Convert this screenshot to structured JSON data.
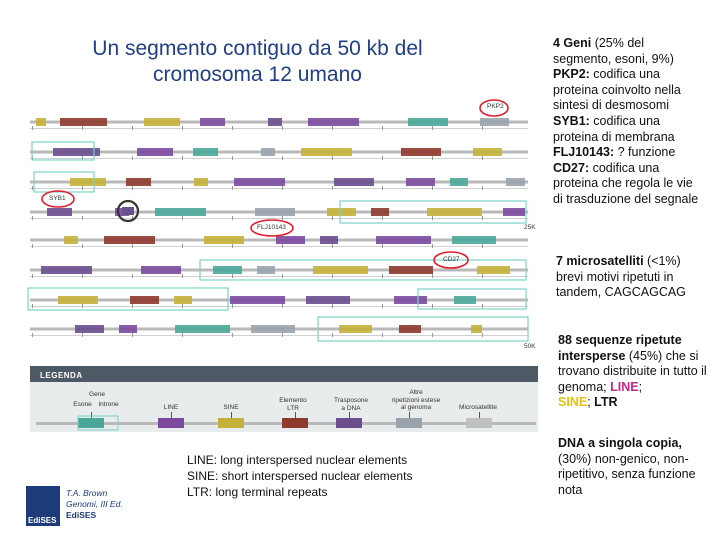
{
  "title": {
    "line1": "Un segmento contiguo da 50 kb del",
    "line2": "cromosoma 12 umano"
  },
  "genes": {
    "pkp2": "PKP2",
    "syb1": "SYB1",
    "flj": "FLJ10143",
    "cd27": "CD27"
  },
  "scale": {
    "mid": "25K",
    "end": "50K"
  },
  "legend": {
    "title": "LEGENDA",
    "gene": "Gene",
    "exon": "Esone",
    "intron": "Introne",
    "line": "LINE",
    "sine": "SINE",
    "ltr1": "Elemento",
    "ltr2": "LTR",
    "dna1": "Trasposone",
    "dna2": "a DNA",
    "other1": "Altre",
    "other2": "ripetizioni estese",
    "other3": "al genoma",
    "micro": "Microsatellite"
  },
  "colors": {
    "gene": "#4aa89a",
    "gene_box": "#7cd1c8",
    "line": "#7b4a9e",
    "sine": "#c5b13a",
    "ltr": "#8e3a2d",
    "dna": "#6a4e8e",
    "microsat": "#c0c0c0",
    "other": "#9aa3ad",
    "backbone": "#b9b9b9",
    "callout": "#e11d2a",
    "legend_header": "#4d5a66",
    "legend_bg": "#e9ecec"
  },
  "notes": {
    "genes": {
      "heading": "4 Geni",
      "share": " (25% del segmento, esoni, 9%)",
      "pkp2_name": "PKP2:",
      "pkp2_text": " codifica una proteina coinvolto nella sintesi di desmosomi",
      "syb1_name": "SYB1:",
      "syb1_text": " codifica una proteina di membrana",
      "flj_name": "FLJ10143:",
      "flj_text": " ? funzione",
      "cd27_name": "CD27:",
      "cd27_text": " codifica una proteina che regola le vie di trasduzione del segnale"
    },
    "micro": {
      "heading": "7 microsatelliti",
      "share": " (<1%)",
      "text": "brevi motivi ripetuti in tandem, CAGCAGCAG"
    },
    "inter": {
      "heading": "88 sequenze ripetute intersperse",
      "share": " (45%)",
      "text": " che si trovano distribuite in tutto il genoma; ",
      "line": "LINE",
      "sep1": ";",
      "sine": "SINE",
      "sep2": "; ",
      "ltr": "LTR"
    },
    "single": {
      "heading": "DNA a singola copia,",
      "text": " (30%) non-genico, non-ripetitivo, senza funzione nota"
    }
  },
  "glossary": {
    "line": "LINE: long interspersed nuclear elements",
    "sine": "SINE: short interspersed nuclear elements",
    "ltr": "LTR: long terminal repeats"
  },
  "credit": {
    "logo": "EdiSES",
    "author": "T.A. Brown",
    "book": "Genomi, III Ed.",
    "publisher": "EdiSES"
  }
}
